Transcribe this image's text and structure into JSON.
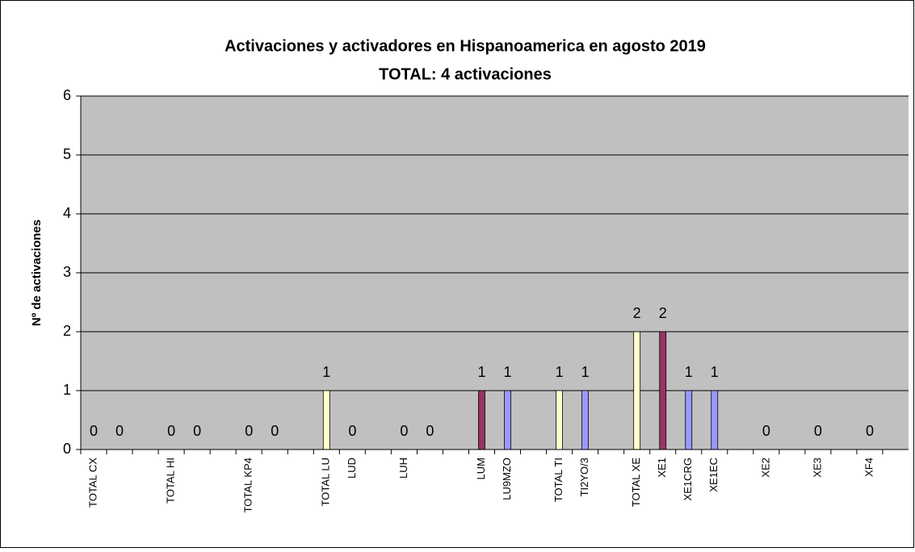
{
  "chart_data": {
    "type": "bar",
    "title": "Activaciones y activadores en Hispanoamerica en agosto 2019",
    "subtitle": "TOTAL: 4 activaciones",
    "y_label": "Nº de activaciones",
    "categories": [
      "TOTAL CX",
      null,
      null,
      "TOTAL HI",
      null,
      null,
      "TOTAL KP4",
      null,
      null,
      "TOTAL LU",
      "LUD",
      null,
      "LUH",
      null,
      null,
      "LUM",
      "LU9MZO",
      null,
      "TOTAL TI",
      "TI2YO/3",
      null,
      "TOTAL XE",
      "XE1",
      "XE1CRG",
      "XE1EC",
      null,
      "XE2",
      null,
      "XE3",
      null,
      "XF4",
      null
    ],
    "values": [
      0,
      0,
      null,
      0,
      0,
      null,
      0,
      0,
      null,
      1,
      0,
      null,
      0,
      0,
      null,
      1,
      1,
      null,
      1,
      1,
      null,
      2,
      2,
      1,
      1,
      null,
      0,
      null,
      0,
      null,
      0,
      null
    ],
    "colors": [
      null,
      null,
      null,
      null,
      null,
      null,
      null,
      null,
      null,
      "#ffffcc",
      null,
      null,
      null,
      null,
      null,
      "#993366",
      "#9999ff",
      null,
      "#ffffcc",
      "#9999ff",
      null,
      "#ffffcc",
      "#993366",
      "#9999ff",
      "#9999ff",
      null,
      null,
      null,
      null,
      null,
      null,
      null
    ],
    "ylim": [
      0,
      6
    ],
    "yticks": [
      0,
      1,
      2,
      3,
      4,
      5,
      6
    ],
    "grid": true,
    "plot_background": "#c0c0c0"
  }
}
